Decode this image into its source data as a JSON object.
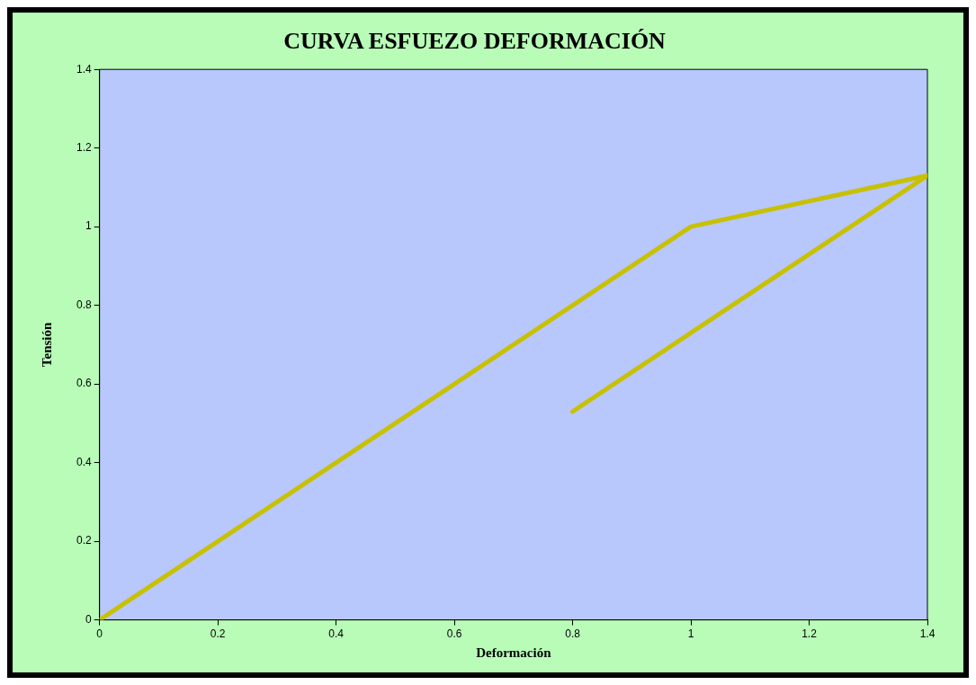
{
  "chart_data": {
    "type": "line",
    "title": "CURVA ESFUEZO DEFORMACIÓN",
    "xlabel": "Deformación",
    "ylabel": "Tensión",
    "x": [
      0,
      1,
      1.4,
      0.8
    ],
    "series": [
      {
        "color": "#c8c000",
        "values": [
          0,
          1,
          1.13,
          0.53
        ]
      }
    ],
    "xlim": [
      0,
      1.4
    ],
    "ylim": [
      0,
      1.4
    ],
    "xticks": [
      0,
      0.2,
      0.4,
      0.6,
      0.8,
      1,
      1.2,
      1.4
    ],
    "yticks": [
      0,
      0.2,
      0.4,
      0.6,
      0.8,
      1,
      1.2,
      1.4
    ],
    "grid": false,
    "legend": false,
    "marker": "none",
    "line_style": "solid"
  }
}
